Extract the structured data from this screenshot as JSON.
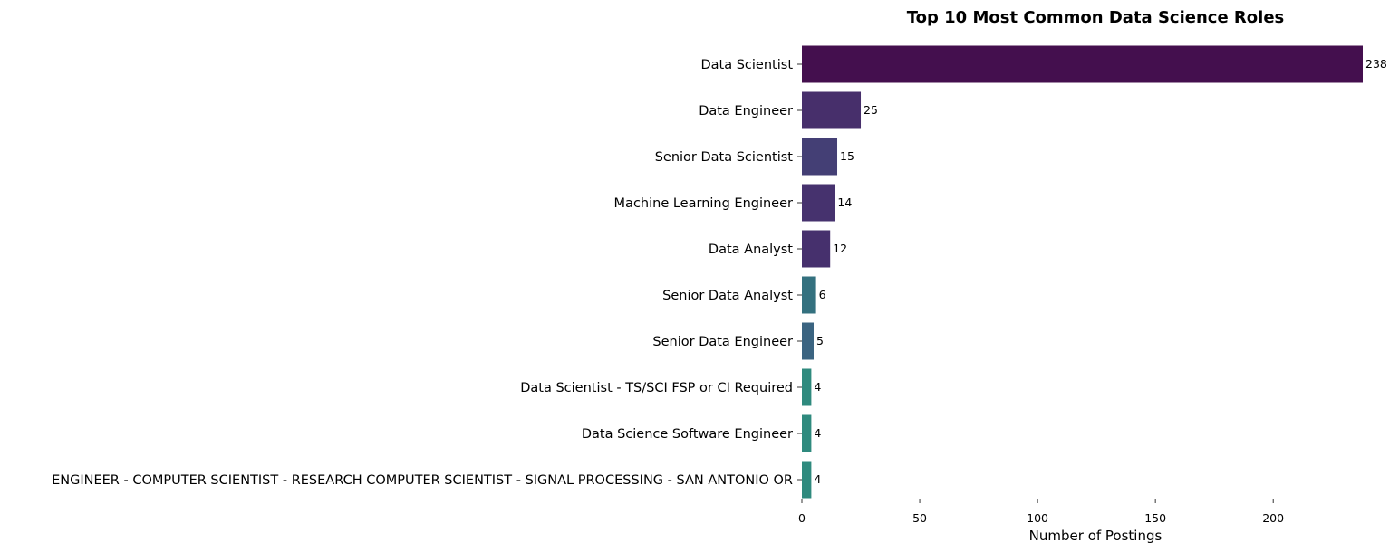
{
  "chart_data": {
    "type": "bar",
    "orientation": "horizontal",
    "title": "Top 10 Most Common Data Science Roles",
    "xlabel": "Number of Postings",
    "ylabel": "",
    "xlim": [
      0,
      238
    ],
    "xticks": [
      0,
      50,
      100,
      150,
      200
    ],
    "grid": false,
    "categories": [
      "Data Scientist",
      "Data Engineer",
      "Senior Data Scientist",
      "Machine Learning Engineer",
      "Data Analyst",
      "Senior Data Analyst",
      "Senior Data Engineer",
      "Data Scientist - TS/SCI FSP or CI Required",
      "Data Science Software Engineer",
      "ENGINEER - COMPUTER SCIENTIST - RESEARCH COMPUTER SCIENTIST - SIGNAL PROCESSING - SAN ANTONIO OR"
    ],
    "values": [
      238,
      25,
      15,
      14,
      12,
      6,
      5,
      4,
      4,
      4
    ],
    "colors": [
      "#440f4e",
      "#472f6b",
      "#443f75",
      "#46326e",
      "#46306d",
      "#34717f",
      "#3b6481",
      "#2f8a7e",
      "#2f8a7e",
      "#2f8a7e"
    ]
  }
}
